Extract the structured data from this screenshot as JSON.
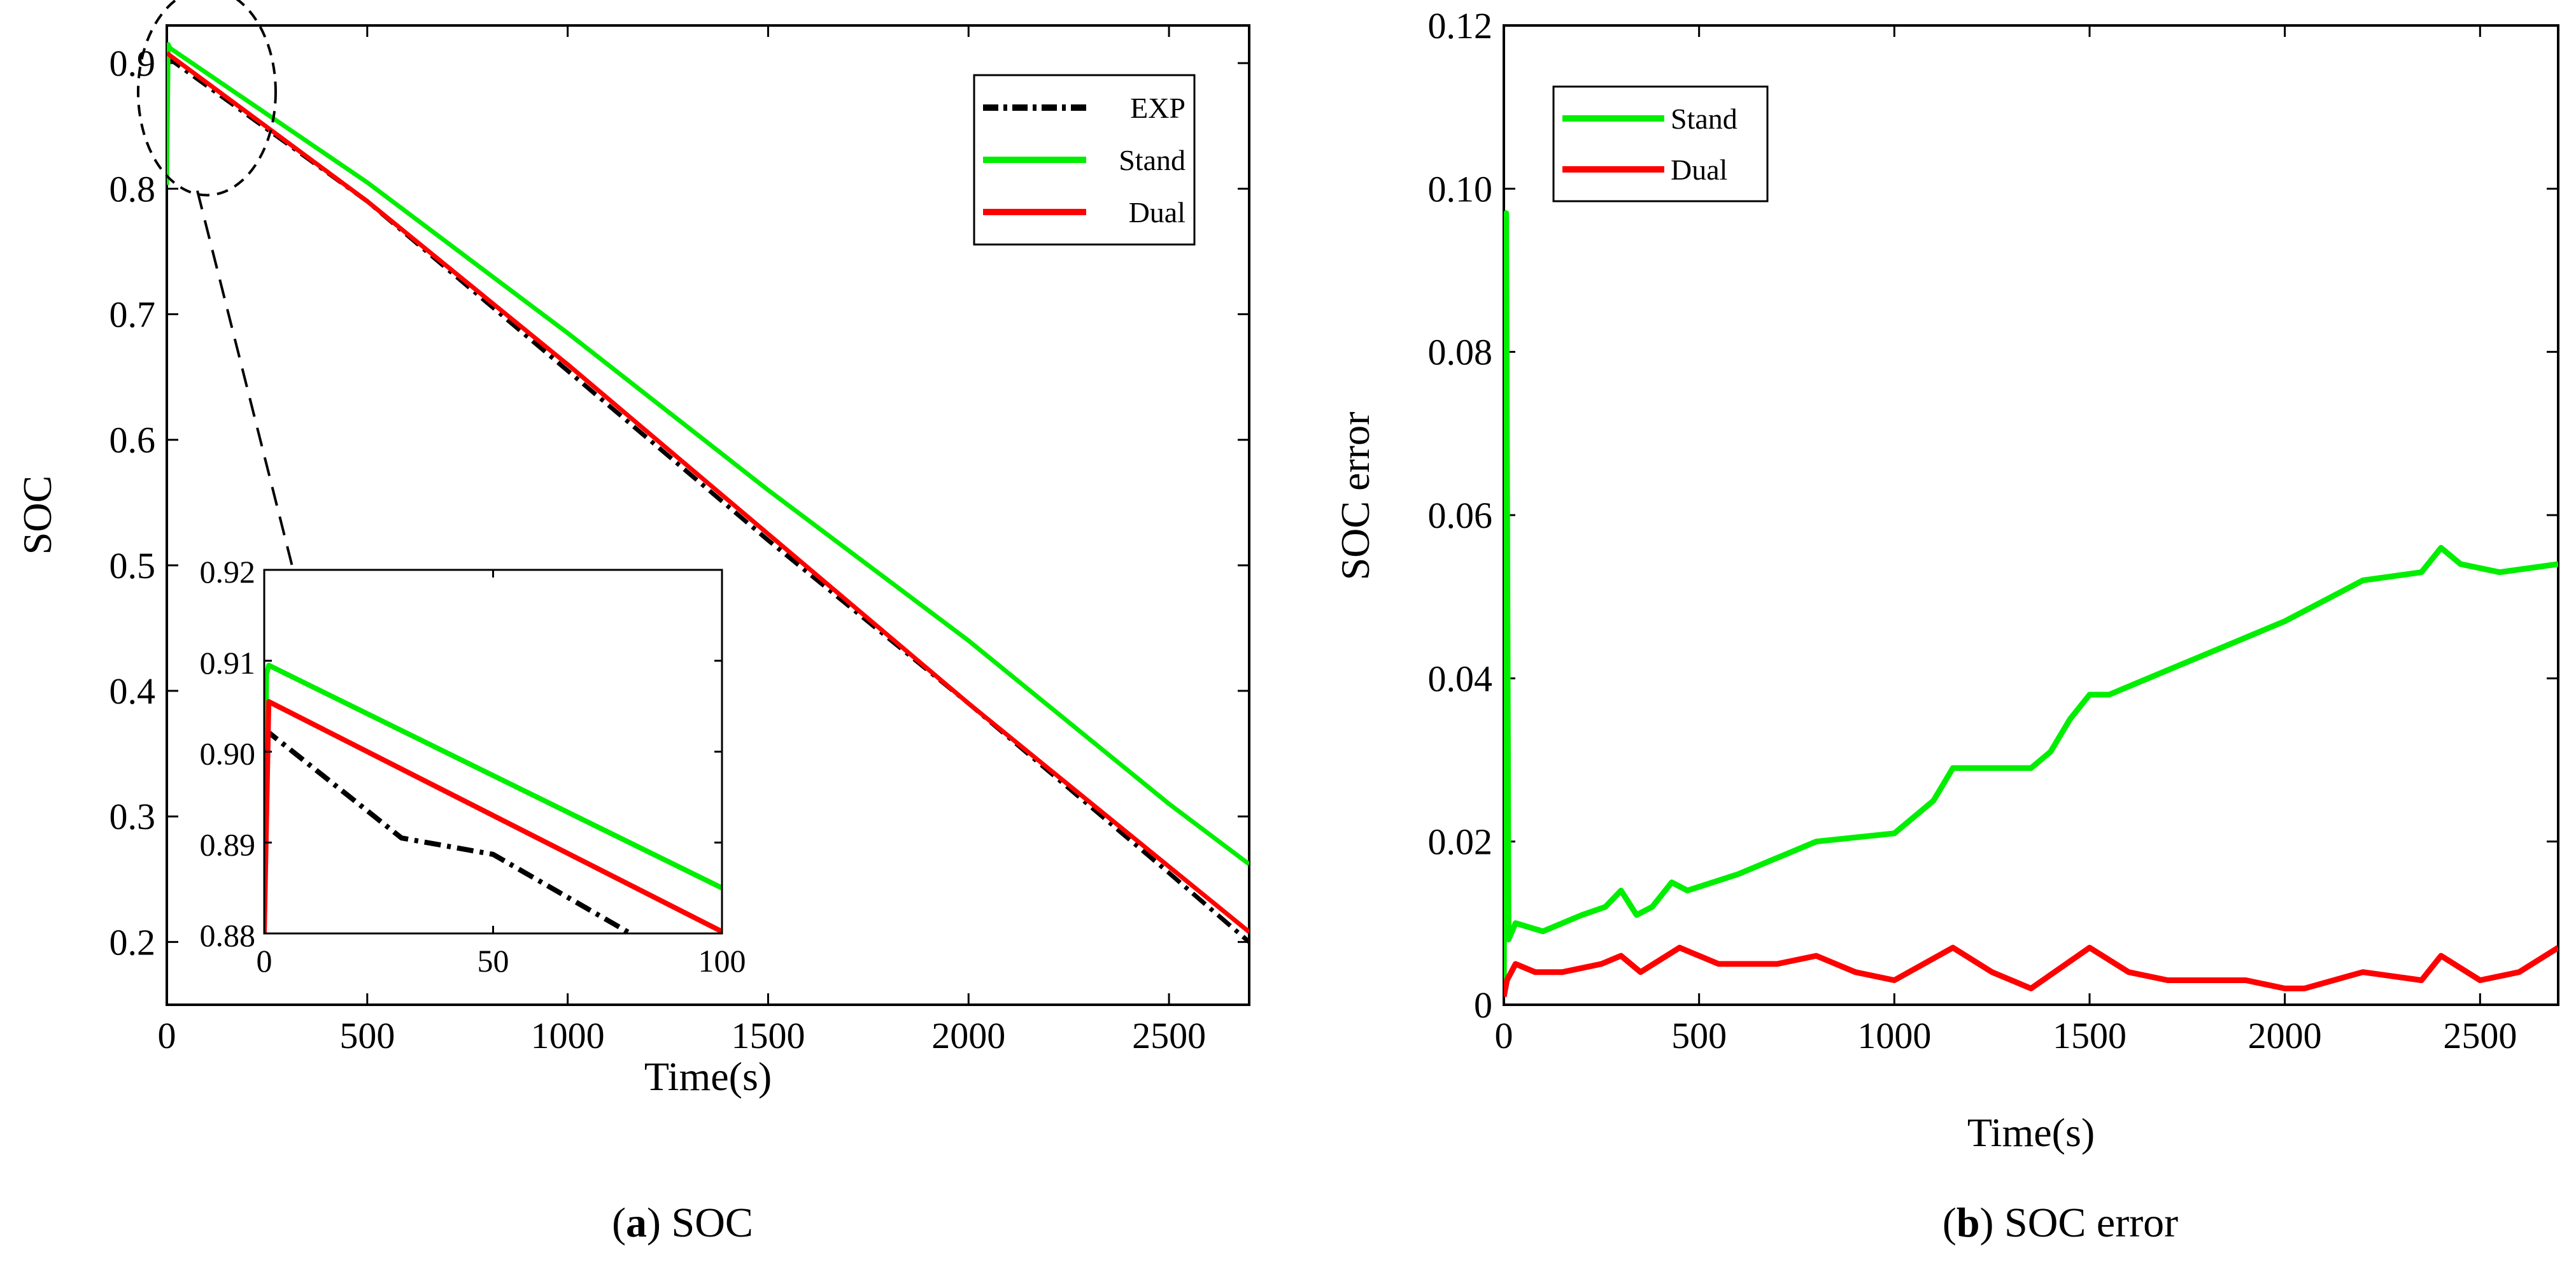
{
  "chart_data": [
    {
      "type": "line",
      "caption": {
        "letter": "a",
        "open": "(",
        "close": ") ",
        "text": "SOC"
      },
      "xlabel": "Time(s)",
      "ylabel": "SOC",
      "xlim": [
        0,
        2700
      ],
      "ylim": [
        0.15,
        0.93
      ],
      "xticks": [
        "0",
        "500",
        "1000",
        "1500",
        "2000",
        "2500"
      ],
      "xtick_values": [
        0,
        500,
        1000,
        1500,
        2000,
        2500
      ],
      "yticks": [
        "0.2",
        "0.3",
        "0.4",
        "0.5",
        "0.6",
        "0.7",
        "0.8",
        "0.9"
      ],
      "ytick_values": [
        0.2,
        0.3,
        0.4,
        0.5,
        0.6,
        0.7,
        0.8,
        0.9
      ],
      "legend_position": "top-right",
      "series": [
        {
          "name": "EXP",
          "color": "#000000",
          "style": "dashdot",
          "x": [
            0,
            500,
            1000,
            1500,
            2000,
            2500,
            2700
          ],
          "y": [
            0.905,
            0.79,
            0.655,
            0.52,
            0.39,
            0.255,
            0.2
          ]
        },
        {
          "name": "Stand",
          "color": "#00ee00",
          "style": "solid",
          "x": [
            0,
            4,
            8,
            500,
            1000,
            1500,
            2000,
            2500,
            2700
          ],
          "y": [
            0.803,
            0.915,
            0.912,
            0.805,
            0.685,
            0.56,
            0.44,
            0.31,
            0.262
          ]
        },
        {
          "name": "Dual",
          "color": "#ff0000",
          "style": "solid",
          "x": [
            0,
            500,
            1000,
            1500,
            2000,
            2500,
            2700
          ],
          "y": [
            0.908,
            0.79,
            0.66,
            0.525,
            0.39,
            0.26,
            0.208
          ]
        }
      ],
      "inset": {
        "xlim": [
          0,
          100
        ],
        "ylim": [
          0.88,
          0.92
        ],
        "xticks": [
          "0",
          "50",
          "100"
        ],
        "xtick_values": [
          0,
          50,
          100
        ],
        "yticks": [
          "0.88",
          "0.89",
          "0.90",
          "0.91",
          "0.92"
        ],
        "ytick_values": [
          0.88,
          0.89,
          0.9,
          0.91,
          0.92
        ],
        "series": [
          {
            "name": "EXP",
            "color": "#000000",
            "style": "dashdot",
            "x": [
              0,
              30,
              50,
              80
            ],
            "y": [
              0.9025,
              0.8905,
              0.8887,
              0.88
            ]
          },
          {
            "name": "Stand",
            "color": "#00ee00",
            "style": "solid",
            "x": [
              0,
              0.5,
              1,
              100
            ],
            "y": [
              0.88,
              0.9085,
              0.9095,
              0.885
            ]
          },
          {
            "name": "Dual",
            "color": "#ff0000",
            "style": "solid",
            "x": [
              0,
              1,
              100
            ],
            "y": [
              0.88,
              0.9055,
              0.8802
            ]
          }
        ]
      }
    },
    {
      "type": "line",
      "caption": {
        "letter": "b",
        "open": "(",
        "close": ") ",
        "text": "SOC error"
      },
      "xlabel": "Time(s)",
      "ylabel": "SOC error",
      "xlim": [
        0,
        2700
      ],
      "ylim": [
        0,
        0.12
      ],
      "xticks": [
        "0",
        "500",
        "1000",
        "1500",
        "2000",
        "2500"
      ],
      "xtick_values": [
        0,
        500,
        1000,
        1500,
        2000,
        2500
      ],
      "yticks": [
        "0",
        "0.02",
        "0.04",
        "0.06",
        "0.08",
        "0.10",
        "0.12"
      ],
      "ytick_values": [
        0,
        0.02,
        0.04,
        0.06,
        0.08,
        0.1,
        0.12
      ],
      "legend_position": "top-left",
      "series": [
        {
          "name": "Stand",
          "color": "#00ee00",
          "style": "solid",
          "x": [
            0,
            6,
            12,
            30,
            100,
            200,
            260,
            300,
            340,
            380,
            430,
            470,
            600,
            800,
            1000,
            1100,
            1150,
            1200,
            1350,
            1400,
            1450,
            1500,
            1550,
            1650,
            1900,
            2000,
            2200,
            2350,
            2400,
            2450,
            2550,
            2700
          ],
          "y": [
            0.001,
            0.097,
            0.008,
            0.01,
            0.009,
            0.011,
            0.012,
            0.014,
            0.011,
            0.012,
            0.015,
            0.014,
            0.016,
            0.02,
            0.021,
            0.025,
            0.029,
            0.029,
            0.029,
            0.031,
            0.035,
            0.038,
            0.038,
            0.04,
            0.045,
            0.047,
            0.052,
            0.053,
            0.056,
            0.054,
            0.053,
            0.054
          ]
        },
        {
          "name": "Dual",
          "color": "#ff0000",
          "style": "solid",
          "x": [
            0,
            8,
            30,
            80,
            150,
            250,
            300,
            350,
            450,
            550,
            700,
            800,
            900,
            1000,
            1150,
            1250,
            1350,
            1500,
            1600,
            1700,
            1900,
            2000,
            2050,
            2200,
            2350,
            2400,
            2500,
            2600,
            2700
          ],
          "y": [
            0.001,
            0.003,
            0.005,
            0.004,
            0.004,
            0.005,
            0.006,
            0.004,
            0.007,
            0.005,
            0.005,
            0.006,
            0.004,
            0.003,
            0.007,
            0.004,
            0.002,
            0.007,
            0.004,
            0.003,
            0.003,
            0.002,
            0.002,
            0.004,
            0.003,
            0.006,
            0.003,
            0.004,
            0.007
          ]
        }
      ]
    }
  ]
}
